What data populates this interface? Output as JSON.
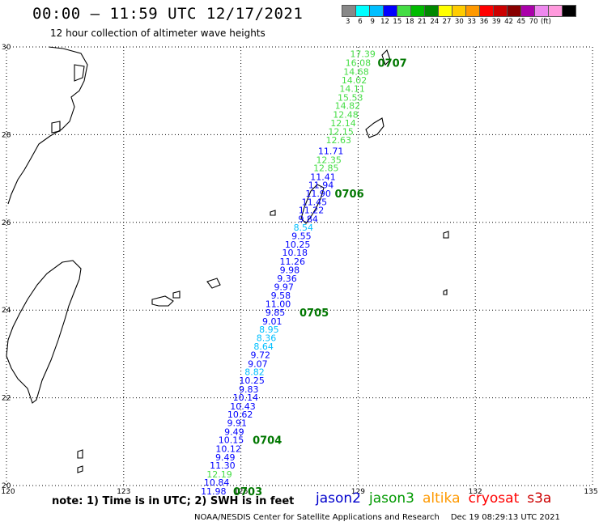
{
  "header": {
    "title": "00:00 – 11:59 UTC 12/17/2021",
    "subtitle": "12 hour collection of altimeter wave heights"
  },
  "legend": {
    "colors": [
      "#888888",
      "#00ffff",
      "#00bfff",
      "#0000ff",
      "#44dd44",
      "#00bb00",
      "#008800",
      "#ffff00",
      "#ffcc00",
      "#ff9900",
      "#ff0000",
      "#cc0000",
      "#880000",
      "#aa00aa",
      "#ee88ee",
      "#ff99dd",
      "#000000"
    ],
    "ticks": [
      "3",
      "6",
      "9",
      "12",
      "15",
      "18",
      "21",
      "24",
      "27",
      "30",
      "33",
      "36",
      "39",
      "42",
      "45",
      "70",
      "(ft)"
    ]
  },
  "map": {
    "lon_range": [
      120,
      135
    ],
    "lat_range": [
      20,
      30
    ],
    "lon_ticks": [
      "120",
      "123",
      "126",
      "129",
      "132",
      "135"
    ],
    "lat_ticks": [
      "30",
      "28",
      "26",
      "24",
      "22",
      "20"
    ]
  },
  "track": {
    "points": [
      {
        "v": "17.39",
        "lon": 129.12,
        "lat": 29.84,
        "color": "#44dd44"
      },
      {
        "v": "16.08",
        "lon": 129.0,
        "lat": 29.64,
        "color": "#44dd44"
      },
      {
        "v": "14.68",
        "lon": 128.95,
        "lat": 29.44,
        "color": "#44dd44"
      },
      {
        "v": "14.02",
        "lon": 128.9,
        "lat": 29.24,
        "color": "#44dd44"
      },
      {
        "v": "14.11",
        "lon": 128.85,
        "lat": 29.05,
        "color": "#44dd44"
      },
      {
        "v": "15.53",
        "lon": 128.8,
        "lat": 28.85,
        "color": "#44dd44"
      },
      {
        "v": "14.82",
        "lon": 128.73,
        "lat": 28.66,
        "color": "#44dd44"
      },
      {
        "v": "12.48",
        "lon": 128.68,
        "lat": 28.46,
        "color": "#44dd44"
      },
      {
        "v": "12.14",
        "lon": 128.62,
        "lat": 28.27,
        "color": "#44dd44"
      },
      {
        "v": "12.15",
        "lon": 128.56,
        "lat": 28.07,
        "color": "#44dd44"
      },
      {
        "v": "12.63",
        "lon": 128.5,
        "lat": 27.88,
        "color": "#44dd44"
      },
      {
        "v": "11.71",
        "lon": 128.3,
        "lat": 27.63,
        "color": "#0000ff"
      },
      {
        "v": "12.35",
        "lon": 128.25,
        "lat": 27.43,
        "color": "#44dd44"
      },
      {
        "v": "12.85",
        "lon": 128.18,
        "lat": 27.24,
        "color": "#44dd44"
      },
      {
        "v": "11.41",
        "lon": 128.1,
        "lat": 27.04,
        "color": "#0000ff"
      },
      {
        "v": "11.94",
        "lon": 128.05,
        "lat": 26.85,
        "color": "#0000ff"
      },
      {
        "v": "11.90",
        "lon": 127.98,
        "lat": 26.66,
        "color": "#0000ff"
      },
      {
        "v": "11.45",
        "lon": 127.88,
        "lat": 26.47,
        "color": "#0000ff"
      },
      {
        "v": "11.22",
        "lon": 127.8,
        "lat": 26.28,
        "color": "#0000ff"
      },
      {
        "v": "9.84",
        "lon": 127.72,
        "lat": 26.08,
        "color": "#0000ff"
      },
      {
        "v": "8.54",
        "lon": 127.6,
        "lat": 25.89,
        "color": "#00bfff"
      },
      {
        "v": "9.55",
        "lon": 127.55,
        "lat": 25.69,
        "color": "#0000ff"
      },
      {
        "v": "10.25",
        "lon": 127.45,
        "lat": 25.5,
        "color": "#0000ff"
      },
      {
        "v": "10.18",
        "lon": 127.38,
        "lat": 25.31,
        "color": "#0000ff"
      },
      {
        "v": "11.26",
        "lon": 127.32,
        "lat": 25.11,
        "color": "#0000ff"
      },
      {
        "v": "9.98",
        "lon": 127.25,
        "lat": 24.92,
        "color": "#0000ff"
      },
      {
        "v": "9.36",
        "lon": 127.18,
        "lat": 24.72,
        "color": "#0000ff"
      },
      {
        "v": "9.97",
        "lon": 127.1,
        "lat": 24.53,
        "color": "#0000ff"
      },
      {
        "v": "9.58",
        "lon": 127.02,
        "lat": 24.34,
        "color": "#0000ff"
      },
      {
        "v": "11.00",
        "lon": 126.95,
        "lat": 24.14,
        "color": "#0000ff"
      },
      {
        "v": "9.85",
        "lon": 126.88,
        "lat": 23.95,
        "color": "#0000ff"
      },
      {
        "v": "9.01",
        "lon": 126.8,
        "lat": 23.75,
        "color": "#0000ff"
      },
      {
        "v": "8.95",
        "lon": 126.72,
        "lat": 23.56,
        "color": "#00bfff"
      },
      {
        "v": "8.36",
        "lon": 126.65,
        "lat": 23.37,
        "color": "#00bfff"
      },
      {
        "v": "8.64",
        "lon": 126.58,
        "lat": 23.17,
        "color": "#00bfff"
      },
      {
        "v": "9.72",
        "lon": 126.5,
        "lat": 22.98,
        "color": "#0000ff"
      },
      {
        "v": "9.07",
        "lon": 126.43,
        "lat": 22.78,
        "color": "#0000ff"
      },
      {
        "v": "8.82",
        "lon": 126.35,
        "lat": 22.59,
        "color": "#00bfff"
      },
      {
        "v": "10.25",
        "lon": 126.28,
        "lat": 22.4,
        "color": "#0000ff"
      },
      {
        "v": "9.83",
        "lon": 126.2,
        "lat": 22.2,
        "color": "#0000ff"
      },
      {
        "v": "10.14",
        "lon": 126.12,
        "lat": 22.01,
        "color": "#0000ff"
      },
      {
        "v": "10.43",
        "lon": 126.05,
        "lat": 21.81,
        "color": "#0000ff"
      },
      {
        "v": "10.62",
        "lon": 125.98,
        "lat": 21.62,
        "color": "#0000ff"
      },
      {
        "v": "9.91",
        "lon": 125.9,
        "lat": 21.43,
        "color": "#0000ff"
      },
      {
        "v": "9.49",
        "lon": 125.83,
        "lat": 21.23,
        "color": "#0000ff"
      },
      {
        "v": "10.15",
        "lon": 125.75,
        "lat": 21.04,
        "color": "#0000ff"
      },
      {
        "v": "10.12",
        "lon": 125.68,
        "lat": 20.84,
        "color": "#0000ff"
      },
      {
        "v": "9.49",
        "lon": 125.6,
        "lat": 20.65,
        "color": "#0000ff"
      },
      {
        "v": "11.30",
        "lon": 125.53,
        "lat": 20.46,
        "color": "#0000ff"
      },
      {
        "v": "12.19",
        "lon": 125.45,
        "lat": 20.26,
        "color": "#44dd44"
      },
      {
        "v": "10.84",
        "lon": 125.38,
        "lat": 20.07,
        "color": "#0000ff"
      },
      {
        "v": "11.98",
        "lon": 125.3,
        "lat": 19.87,
        "color": "#0000ff"
      }
    ],
    "time_labels": [
      {
        "t": "0707",
        "lon": 129.5,
        "lat": 29.64
      },
      {
        "t": "0706",
        "lon": 128.4,
        "lat": 26.66
      },
      {
        "t": "0705",
        "lon": 127.5,
        "lat": 23.95
      },
      {
        "t": "0704",
        "lon": 126.3,
        "lat": 21.04
      },
      {
        "t": "0703",
        "lon": 125.8,
        "lat": 19.87
      }
    ],
    "time_color": "#007700"
  },
  "footer": {
    "note": "note: 1) Time is in UTC; 2) SWH is in feet",
    "satellites": [
      {
        "name": "jason2",
        "color": "#0000cc"
      },
      {
        "name": "jason3",
        "color": "#009900"
      },
      {
        "name": "altika",
        "color": "#ff9900"
      },
      {
        "name": "cryosat",
        "color": "#ff0000"
      },
      {
        "name": "s3a",
        "color": "#cc0000"
      }
    ],
    "credit": "NOAA/NESDIS Center for Satellite Applications and Research",
    "timestamp": "Dec 19 08:29:13 UTC 2021"
  }
}
